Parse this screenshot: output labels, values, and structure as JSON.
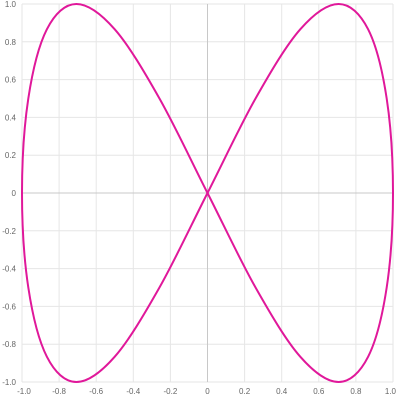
{
  "chart_data": {
    "type": "line",
    "title": "",
    "xlabel": "",
    "ylabel": "",
    "xlim": [
      -1.0,
      1.0
    ],
    "ylim": [
      -1.0,
      1.0
    ],
    "grid": true,
    "legend": "none",
    "x_ticks": [
      "-1.0",
      "-0.8",
      "-0.6",
      "-0.4",
      "-0.2",
      "0",
      "0.2",
      "0.4",
      "0.6",
      "0.8",
      "1.0"
    ],
    "y_ticks": [
      "1.0",
      "0.8",
      "0.6",
      "0.4",
      "0.2",
      "0",
      "-0.2",
      "-0.4",
      "-0.6",
      "-0.8",
      "-1.0"
    ],
    "series": [
      {
        "color": "#e0189a",
        "x": [
          0,
          0.259,
          0.5,
          0.707,
          0.866,
          0.966,
          1.0,
          0.966,
          0.866,
          0.707,
          0.5,
          0.259,
          0,
          -0.259,
          -0.5,
          -0.707,
          -0.866,
          -0.966,
          -1.0,
          -0.966,
          -0.866,
          -0.707,
          -0.5,
          -0.259,
          0
        ],
        "y": [
          0,
          0.5,
          0.866,
          1.0,
          0.866,
          0.5,
          0,
          -0.5,
          -0.866,
          -1.0,
          -0.866,
          -0.5,
          0,
          0.5,
          0.866,
          1.0,
          0.866,
          0.5,
          0,
          -0.5,
          -0.866,
          -1.0,
          -0.866,
          -0.5,
          0
        ]
      }
    ]
  }
}
